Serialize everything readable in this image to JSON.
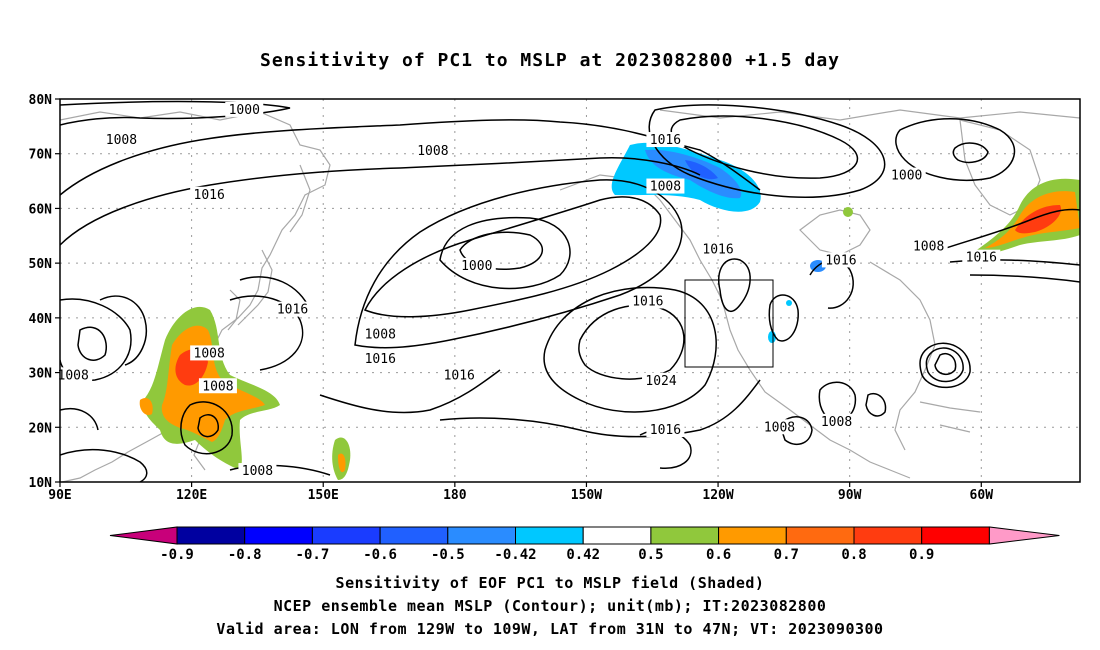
{
  "title": "Sensitivity of PC1 to MSLP at 2023082800 +1.5 day",
  "map": {
    "lat_labels": [
      "80N",
      "70N",
      "60N",
      "50N",
      "40N",
      "30N",
      "20N",
      "10N"
    ],
    "lon_labels": [
      "90E",
      "120E",
      "150E",
      "180",
      "150W",
      "120W",
      "90W",
      "60W"
    ],
    "valid_box": {
      "lon_from": "129W",
      "lon_to": "109W",
      "lat_from": "31N",
      "lat_to": "47N"
    },
    "contour_labels": [
      {
        "text": "1000",
        "lon": 132,
        "lat": 78
      },
      {
        "text": "1008",
        "lon": 104,
        "lat": 72.5
      },
      {
        "text": "1008",
        "lon": 175,
        "lat": 70.5
      },
      {
        "text": "1016",
        "lon": 124,
        "lat": 62.5
      },
      {
        "text": "1016",
        "lon": -132,
        "lat": 72.5
      },
      {
        "text": "1008",
        "lon": -132,
        "lat": 64
      },
      {
        "text": "1000",
        "lon": -175,
        "lat": 49.5
      },
      {
        "text": "1016",
        "lon": 143,
        "lat": 41.5
      },
      {
        "text": "1008",
        "lon": 163,
        "lat": 37
      },
      {
        "text": "1016",
        "lon": 163,
        "lat": 32.5
      },
      {
        "text": "1008",
        "lon": 124,
        "lat": 33.5
      },
      {
        "text": "1008",
        "lon": 93,
        "lat": 29.5
      },
      {
        "text": "1008",
        "lon": 126,
        "lat": 27.5
      },
      {
        "text": "1016",
        "lon": -179,
        "lat": 29.5
      },
      {
        "text": "1016",
        "lon": -136,
        "lat": 43
      },
      {
        "text": "1024",
        "lon": -133,
        "lat": 28.5
      },
      {
        "text": "1016",
        "lon": -132,
        "lat": 19.5
      },
      {
        "text": "1016",
        "lon": -120,
        "lat": 52.5
      },
      {
        "text": "1016",
        "lon": -92,
        "lat": 50.5
      },
      {
        "text": "1008",
        "lon": -106,
        "lat": 20
      },
      {
        "text": "1008",
        "lon": -93,
        "lat": 21
      },
      {
        "text": "1000",
        "lon": -77,
        "lat": 66
      },
      {
        "text": "1008",
        "lon": -72,
        "lat": 53
      },
      {
        "text": "1016",
        "lon": -60,
        "lat": 51
      },
      {
        "text": "1008",
        "lon": 135,
        "lat": 12
      }
    ]
  },
  "colorbar": {
    "levels": [
      "-0.9",
      "-0.8",
      "-0.7",
      "-0.6",
      "-0.5",
      "-0.42",
      "0.42",
      "0.5",
      "0.6",
      "0.7",
      "0.8",
      "0.9"
    ],
    "colors": [
      "#0000a0",
      "#0000ff",
      "#1a3cff",
      "#2060ff",
      "#2a8cff",
      "#00c8ff",
      "#ffffff",
      "#90c83c",
      "#ff9a00",
      "#ff6a10",
      "#ff3c10",
      "#ff0000"
    ],
    "under_color": "#c8007a",
    "over_color": "#ff9ac8"
  },
  "captions": {
    "line1": "Sensitivity of EOF PC1 to MSLP field (Shaded)",
    "line2": "NCEP ensemble mean MSLP (Contour); unit(mb); IT:2023082800",
    "line3": "Valid area: LON from 129W to 109W, LAT from 31N to 47N; VT: 2023090300"
  }
}
